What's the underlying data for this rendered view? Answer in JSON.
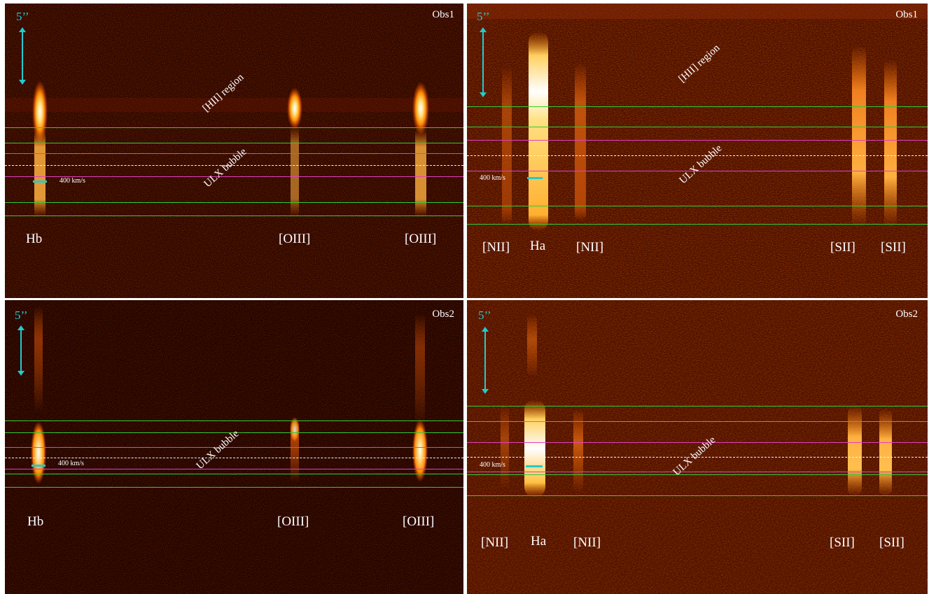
{
  "scale_label": "5’’",
  "velocity_label": "400 km/s",
  "region_labels": {
    "hii": "[HII] region",
    "bubble": "ULX bubble"
  },
  "panels": {
    "top_left": {
      "obs": "Obs1",
      "lines": [
        "Hb",
        "[OIII]",
        "[OIII]"
      ]
    },
    "top_right": {
      "obs": "Obs1",
      "lines": [
        "[NII]",
        "Ha",
        "[NII]",
        "[SII]",
        "[SII]"
      ]
    },
    "bottom_left": {
      "obs": "Obs2",
      "lines": [
        "Hb",
        "[OIII]",
        "[OIII]"
      ]
    },
    "bottom_right": {
      "obs": "Obs2",
      "lines": [
        "[NII]",
        "Ha",
        "[NII]",
        "[SII]",
        "[SII]"
      ]
    }
  },
  "colors": {
    "background": "#220000",
    "emission_core": "#ffffff",
    "emission_glow": "#ff9900",
    "green_line": "#33cc33",
    "magenta_line": "#e040c0",
    "dashed_line": "#f0f0f0",
    "scale_bar": "#22cccc"
  }
}
